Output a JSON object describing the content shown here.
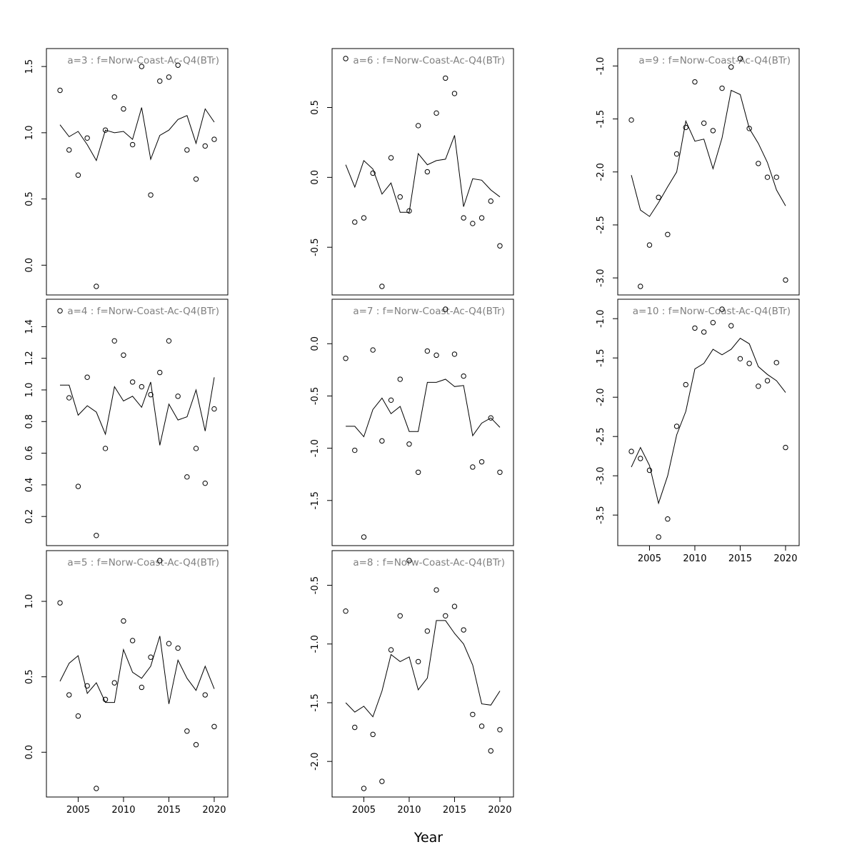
{
  "chart_data": {
    "type": "scatter",
    "xlabel": "Year",
    "years": [
      2003,
      2004,
      2005,
      2006,
      2007,
      2008,
      2009,
      2010,
      2011,
      2012,
      2013,
      2014,
      2015,
      2016,
      2017,
      2018,
      2019,
      2020
    ],
    "panels": [
      {
        "title": "a=3  :  f=Norw-Coast-Ac-Q4(BTr)",
        "ylim": [
          -0.16,
          1.56
        ],
        "yticks": [
          0.0,
          0.5,
          1.0,
          1.5
        ],
        "ytick_labels": [
          "0.0",
          "0.5",
          "1.0",
          "1.5"
        ],
        "xticks_shown": false,
        "observed": [
          1.32,
          0.87,
          0.68,
          0.96,
          -0.16,
          1.02,
          1.27,
          1.18,
          0.91,
          1.5,
          0.53,
          1.39,
          1.42,
          1.51,
          0.87,
          0.65,
          0.9,
          0.95
        ],
        "fitted": [
          1.06,
          0.97,
          1.01,
          0.91,
          0.79,
          1.02,
          1.0,
          1.01,
          0.95,
          1.19,
          0.8,
          0.98,
          1.02,
          1.1,
          1.13,
          0.92,
          1.18,
          1.08
        ]
      },
      {
        "title": "a=4  :  f=Norw-Coast-Ac-Q4(BTr)",
        "ylim": [
          0.07,
          1.51
        ],
        "yticks": [
          0.2,
          0.4,
          0.6,
          0.8,
          1.0,
          1.2,
          1.4
        ],
        "ytick_labels": [
          "0.2",
          "0.4",
          "0.6",
          "0.8",
          "1.0",
          "1.2",
          "1.4"
        ],
        "xticks_shown": false,
        "observed": [
          1.5,
          0.95,
          0.39,
          1.08,
          0.08,
          0.63,
          1.31,
          1.22,
          1.05,
          1.02,
          0.97,
          1.11,
          1.31,
          0.96,
          0.45,
          0.63,
          0.41,
          0.88
        ],
        "fitted": [
          1.03,
          1.03,
          0.84,
          0.9,
          0.86,
          0.72,
          1.02,
          0.93,
          0.96,
          0.89,
          1.05,
          0.65,
          0.91,
          0.81,
          0.83,
          1.0,
          0.74,
          1.08
        ]
      },
      {
        "title": "a=5  :  f=Norw-Coast-Ac-Q4(BTr)",
        "ylim": [
          -0.24,
          1.27
        ],
        "yticks": [
          0.0,
          0.5,
          1.0
        ],
        "ytick_labels": [
          "0.0",
          "0.5",
          "1.0"
        ],
        "xticks_shown": true,
        "observed": [
          0.99,
          0.38,
          0.24,
          0.44,
          -0.24,
          0.35,
          0.46,
          0.87,
          0.74,
          0.43,
          0.63,
          1.27,
          0.72,
          0.69,
          0.14,
          0.05,
          0.38,
          0.17
        ],
        "fitted": [
          0.47,
          0.59,
          0.64,
          0.39,
          0.46,
          0.33,
          0.33,
          0.68,
          0.53,
          0.49,
          0.57,
          0.77,
          0.32,
          0.61,
          0.49,
          0.41,
          0.57,
          0.42
        ]
      },
      {
        "title": "a=6  :  f=Norw-Coast-Ac-Q4(BTr)",
        "ylim": [
          -0.78,
          0.85
        ],
        "yticks": [
          -0.5,
          0.0,
          0.5
        ],
        "ytick_labels": [
          "-0.5",
          "0.0",
          "0.5"
        ],
        "xticks_shown": false,
        "observed": [
          0.85,
          -0.32,
          -0.29,
          0.03,
          -0.78,
          0.14,
          -0.14,
          -0.24,
          0.37,
          0.04,
          0.46,
          0.71,
          0.6,
          -0.29,
          -0.33,
          -0.29,
          -0.17,
          -0.49
        ],
        "fitted": [
          0.09,
          -0.07,
          0.12,
          0.06,
          -0.12,
          -0.04,
          -0.25,
          -0.25,
          0.17,
          0.09,
          0.12,
          0.13,
          0.3,
          -0.21,
          -0.01,
          -0.02,
          -0.09,
          -0.14
        ]
      },
      {
        "title": "a=7  :  f=Norw-Coast-Ac-Q4(BTr)",
        "ylim": [
          -1.85,
          0.33
        ],
        "yticks": [
          -1.5,
          -1.0,
          -0.5,
          0.0
        ],
        "ytick_labels": [
          "-1.5",
          "-1.0",
          "-0.5",
          "0.0"
        ],
        "xticks_shown": false,
        "observed": [
          -0.14,
          -1.02,
          -1.85,
          -0.06,
          -0.93,
          -0.54,
          -0.34,
          -0.96,
          -1.23,
          -0.07,
          -0.11,
          0.33,
          -0.1,
          -0.31,
          -1.18,
          -1.13,
          -0.71,
          -1.23
        ],
        "fitted": [
          -0.79,
          -0.79,
          -0.89,
          -0.63,
          -0.52,
          -0.67,
          -0.6,
          -0.84,
          -0.84,
          -0.37,
          -0.37,
          -0.34,
          -0.41,
          -0.4,
          -0.88,
          -0.76,
          -0.71,
          -0.8
        ]
      },
      {
        "title": "a=8  :  f=Norw-Coast-Ac-Q4(BTr)",
        "ylim": [
          -2.23,
          -0.29
        ],
        "yticks": [
          -2.0,
          -1.5,
          -1.0,
          -0.5
        ],
        "ytick_labels": [
          "-2.0",
          "-1.5",
          "-1.0",
          "-0.5"
        ],
        "xticks_shown": true,
        "observed": [
          -0.72,
          -1.71,
          -2.23,
          -1.77,
          -2.17,
          -1.05,
          -0.76,
          -0.29,
          -1.15,
          -0.89,
          -0.54,
          -0.76,
          -0.68,
          -0.88,
          -1.6,
          -1.7,
          -1.91,
          -1.73
        ],
        "fitted": [
          -1.5,
          -1.58,
          -1.53,
          -1.62,
          -1.4,
          -1.09,
          -1.15,
          -1.11,
          -1.39,
          -1.29,
          -0.8,
          -0.8,
          -0.91,
          -1.0,
          -1.18,
          -1.51,
          -1.52,
          -1.4
        ]
      },
      {
        "title": "a=9  :  f=Norw-Coast-Ac-Q4(BTr)",
        "ylim": [
          -3.08,
          -0.93
        ],
        "yticks": [
          -3.0,
          -2.5,
          -2.0,
          -1.5,
          -1.0
        ],
        "ytick_labels": [
          "-3.0",
          "-2.5",
          "-2.0",
          "-1.5",
          "-1.0"
        ],
        "xticks_shown": false,
        "observed": [
          -1.51,
          -3.08,
          -2.69,
          -2.24,
          -2.59,
          -1.83,
          -1.58,
          -1.15,
          -1.54,
          -1.61,
          -1.21,
          -1.01,
          -0.93,
          -1.59,
          -1.92,
          -2.05,
          -2.05,
          -3.02
        ],
        "fitted": [
          -2.03,
          -2.36,
          -2.42,
          -2.29,
          -2.14,
          -2.0,
          -1.52,
          -1.71,
          -1.69,
          -1.97,
          -1.68,
          -1.23,
          -1.27,
          -1.59,
          -1.73,
          -1.91,
          -2.17,
          -2.32
        ]
      },
      {
        "title": "a=10  :  f=Norw-Coast-Ac-Q4(BTr)",
        "ylim": [
          -3.78,
          -0.88
        ],
        "yticks": [
          -3.5,
          -3.0,
          -2.5,
          -2.0,
          -1.5,
          -1.0
        ],
        "ytick_labels": [
          "-3.5",
          "-3.0",
          "-2.5",
          "-2.0",
          "-1.5",
          "-1.0"
        ],
        "xticks_shown": true,
        "observed": [
          -2.69,
          -2.78,
          -2.93,
          -3.78,
          -3.55,
          -2.37,
          -1.84,
          -1.12,
          -1.17,
          -1.05,
          -0.88,
          -1.09,
          -1.51,
          -1.57,
          -1.86,
          -1.79,
          -1.56,
          -2.64
        ],
        "fitted": [
          -2.89,
          -2.64,
          -2.87,
          -3.35,
          -3.0,
          -2.48,
          -2.18,
          -1.64,
          -1.57,
          -1.39,
          -1.46,
          -1.39,
          -1.25,
          -1.32,
          -1.61,
          -1.71,
          -1.79,
          -1.94
        ]
      }
    ],
    "xtick_values": [
      2005,
      2010,
      2015,
      2020
    ],
    "xtick_labels": [
      "2005",
      "2010",
      "2015",
      "2020"
    ]
  }
}
